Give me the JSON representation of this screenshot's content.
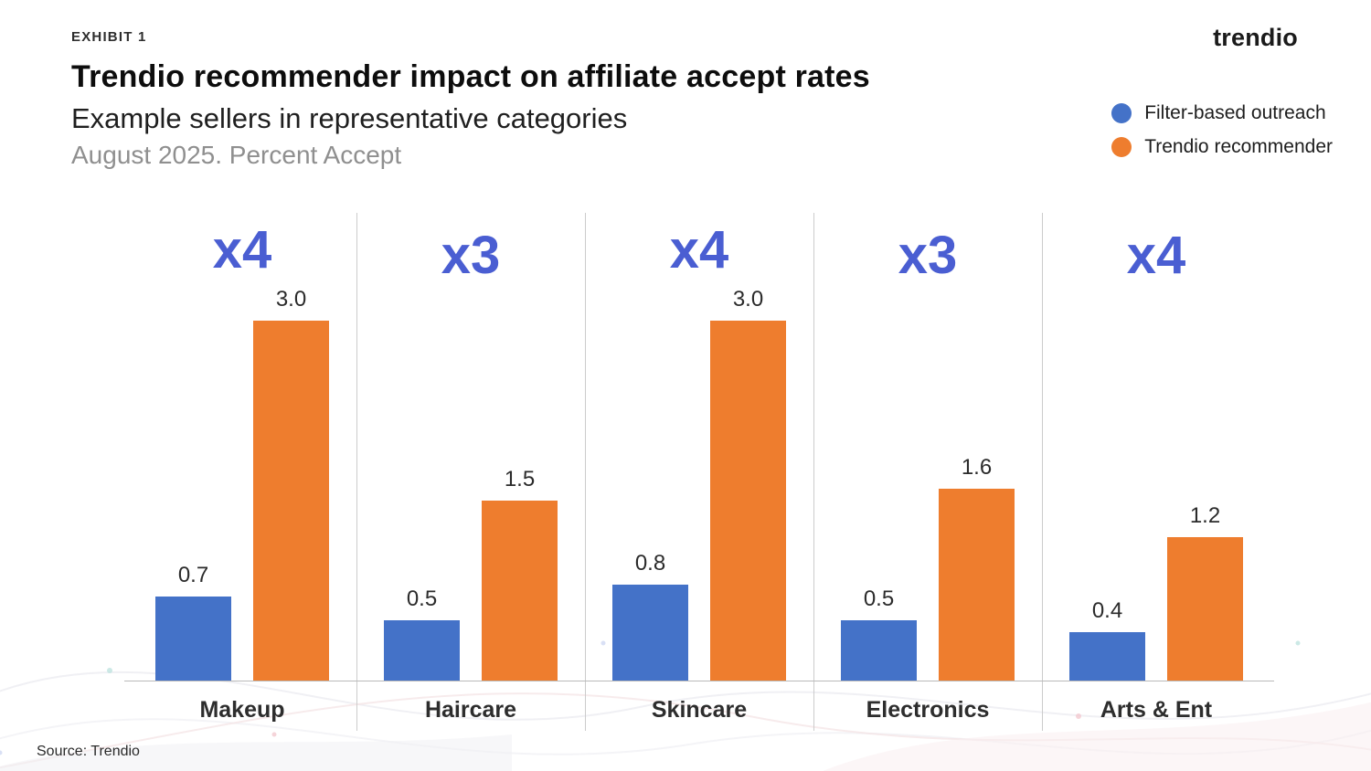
{
  "brand": {
    "logo_text": "trendio"
  },
  "header": {
    "exhibit_label": "EXHIBIT 1",
    "title": "Trendio recommender impact on affiliate accept rates",
    "subtitle": "Example sellers in representative categories",
    "period_label": "August 2025. Percent Accept"
  },
  "legend": {
    "items": [
      {
        "label": "Filter-based outreach",
        "color": "#4472c8"
      },
      {
        "label": "Trendio recommender",
        "color": "#ee7d2e"
      }
    ]
  },
  "footer": {
    "source": "Source: Trendio"
  },
  "chart_data": {
    "type": "bar",
    "title": "Trendio recommender impact on affiliate accept rates",
    "subtitle": "Example sellers in representative categories",
    "unit_label": "Percent Accept",
    "categories": [
      "Makeup",
      "Haircare",
      "Skincare",
      "Electronics",
      "Arts & Ent"
    ],
    "series": [
      {
        "name": "Filter-based outreach",
        "color": "#4472c8",
        "values": [
          0.7,
          0.5,
          0.8,
          0.5,
          0.4
        ]
      },
      {
        "name": "Trendio recommender",
        "color": "#ee7d2e",
        "values": [
          3.0,
          1.5,
          3.0,
          1.6,
          1.2
        ]
      }
    ],
    "multipliers": [
      "x4",
      "x3",
      "x4",
      "x3",
      "x4"
    ],
    "multiplier_color": "#4a5ed2",
    "ylim": [
      0,
      3.2
    ],
    "value_labels": true,
    "grid": false,
    "legend_position": "top-right"
  }
}
